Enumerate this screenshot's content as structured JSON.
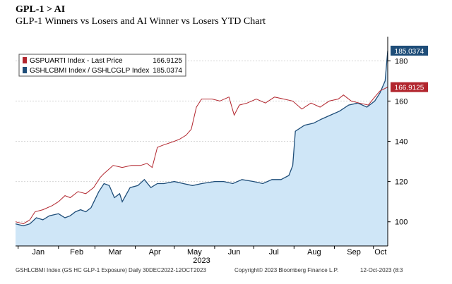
{
  "header": {
    "title": "GPL-1 > AI",
    "subtitle": "GLP-1 Winners vs Losers and AI Winner vs Losers YTD Chart"
  },
  "footer": {
    "source": "GSHLCBMI Index (GS HC GLP-1 Exposure) Daily 30DEC2022-12OCT2023",
    "copyright": "Copyright© 2023 Bloomberg Finance L.P.",
    "date": "12-Oct-2023 (8:3"
  },
  "colors": {
    "red_series": "#b2262e",
    "blue_series": "#1f4e79",
    "blue_fill": "#cfe6f7",
    "gridline": "#d6d6d6"
  },
  "chart_data": {
    "type": "area",
    "x_ticks": [
      "Jan",
      "Feb",
      "Mar",
      "Apr",
      "May",
      "Jun",
      "Jul",
      "Aug",
      "Sep",
      "Oct"
    ],
    "x_year_label": "2023",
    "ylim": [
      88,
      192
    ],
    "y_ticks": [
      100,
      120,
      140,
      160,
      180
    ],
    "grid": true,
    "legend_position": "top-left",
    "series": [
      {
        "name": "GSPUARTI Index - Last Price",
        "legend_value": "166.9125",
        "end_label": "166.9125",
        "color": "#b2262e",
        "fill": false,
        "points": [
          [
            "2022-12-30",
            100
          ],
          [
            "2023-01-05",
            99
          ],
          [
            "2023-01-10",
            101
          ],
          [
            "2023-01-14",
            105
          ],
          [
            "2023-01-20",
            106
          ],
          [
            "2023-01-27",
            108
          ],
          [
            "2023-02-01",
            110
          ],
          [
            "2023-02-06",
            113
          ],
          [
            "2023-02-10",
            112
          ],
          [
            "2023-02-16",
            115
          ],
          [
            "2023-02-22",
            114
          ],
          [
            "2023-02-28",
            117
          ],
          [
            "2023-03-05",
            122
          ],
          [
            "2023-03-08",
            124
          ],
          [
            "2023-03-15",
            128
          ],
          [
            "2023-03-22",
            127
          ],
          [
            "2023-03-29",
            128
          ],
          [
            "2023-04-05",
            128
          ],
          [
            "2023-04-10",
            129
          ],
          [
            "2023-04-14",
            127
          ],
          [
            "2023-04-18",
            137
          ],
          [
            "2023-04-22",
            138
          ],
          [
            "2023-05-01",
            140
          ],
          [
            "2023-05-05",
            141
          ],
          [
            "2023-05-10",
            143
          ],
          [
            "2023-05-14",
            146
          ],
          [
            "2023-05-18",
            157
          ],
          [
            "2023-05-22",
            161
          ],
          [
            "2023-05-30",
            161
          ],
          [
            "2023-06-05",
            160
          ],
          [
            "2023-06-12",
            162
          ],
          [
            "2023-06-16",
            153
          ],
          [
            "2023-06-20",
            158
          ],
          [
            "2023-06-26",
            159
          ],
          [
            "2023-07-03",
            161
          ],
          [
            "2023-07-10",
            159
          ],
          [
            "2023-07-17",
            162
          ],
          [
            "2023-07-24",
            161
          ],
          [
            "2023-07-31",
            160
          ],
          [
            "2023-08-07",
            156
          ],
          [
            "2023-08-14",
            159
          ],
          [
            "2023-08-21",
            157
          ],
          [
            "2023-08-28",
            160
          ],
          [
            "2023-09-04",
            161
          ],
          [
            "2023-09-08",
            163
          ],
          [
            "2023-09-14",
            160
          ],
          [
            "2023-09-20",
            159
          ],
          [
            "2023-09-27",
            158
          ],
          [
            "2023-10-02",
            162
          ],
          [
            "2023-10-06",
            165
          ],
          [
            "2023-10-12",
            166.9125
          ]
        ]
      },
      {
        "name": "GSHLCBMI Index / GSHLCGLP Index",
        "legend_value": "185.0374",
        "end_label": "185.0374",
        "color": "#1f4e79",
        "fill": true,
        "points": [
          [
            "2022-12-30",
            99
          ],
          [
            "2023-01-05",
            98
          ],
          [
            "2023-01-10",
            99
          ],
          [
            "2023-01-15",
            102
          ],
          [
            "2023-01-20",
            101
          ],
          [
            "2023-01-25",
            103
          ],
          [
            "2023-02-01",
            104
          ],
          [
            "2023-02-06",
            102
          ],
          [
            "2023-02-10",
            103
          ],
          [
            "2023-02-14",
            105
          ],
          [
            "2023-02-18",
            106
          ],
          [
            "2023-02-22",
            105
          ],
          [
            "2023-02-26",
            107
          ],
          [
            "2023-03-01",
            111
          ],
          [
            "2023-03-04",
            115
          ],
          [
            "2023-03-08",
            119
          ],
          [
            "2023-03-12",
            118
          ],
          [
            "2023-03-16",
            112
          ],
          [
            "2023-03-20",
            114
          ],
          [
            "2023-03-22",
            110
          ],
          [
            "2023-03-28",
            117
          ],
          [
            "2023-04-03",
            118
          ],
          [
            "2023-04-08",
            121
          ],
          [
            "2023-04-13",
            117
          ],
          [
            "2023-04-18",
            119
          ],
          [
            "2023-04-23",
            119
          ],
          [
            "2023-05-01",
            120
          ],
          [
            "2023-05-08",
            119
          ],
          [
            "2023-05-15",
            118
          ],
          [
            "2023-05-22",
            119
          ],
          [
            "2023-06-01",
            120
          ],
          [
            "2023-06-08",
            120
          ],
          [
            "2023-06-15",
            119
          ],
          [
            "2023-06-22",
            121
          ],
          [
            "2023-07-01",
            120
          ],
          [
            "2023-07-08",
            119
          ],
          [
            "2023-07-15",
            121
          ],
          [
            "2023-07-22",
            121
          ],
          [
            "2023-07-28",
            123
          ],
          [
            "2023-07-31",
            128
          ],
          [
            "2023-08-02",
            145
          ],
          [
            "2023-08-09",
            148
          ],
          [
            "2023-08-16",
            149
          ],
          [
            "2023-08-22",
            151
          ],
          [
            "2023-08-29",
            153
          ],
          [
            "2023-09-05",
            155
          ],
          [
            "2023-09-12",
            158
          ],
          [
            "2023-09-19",
            159
          ],
          [
            "2023-09-26",
            157
          ],
          [
            "2023-10-02",
            160
          ],
          [
            "2023-10-06",
            164
          ],
          [
            "2023-10-10",
            170
          ],
          [
            "2023-10-12",
            185.0374
          ]
        ]
      }
    ]
  }
}
